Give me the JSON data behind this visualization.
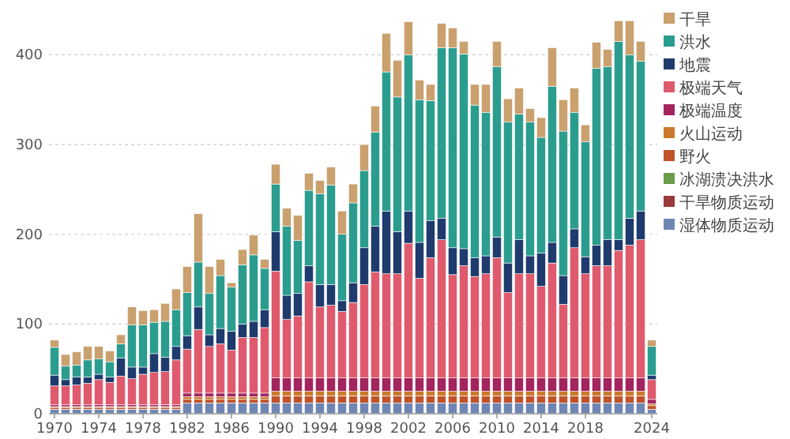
{
  "chart_data": {
    "type": "bar",
    "stacked": true,
    "categories": [
      "1970",
      null,
      null,
      null,
      "1974",
      null,
      null,
      null,
      "1978",
      null,
      null,
      null,
      "1982",
      null,
      null,
      null,
      "1986",
      null,
      null,
      null,
      "1990",
      null,
      null,
      null,
      "1994",
      null,
      null,
      null,
      "1998",
      null,
      null,
      null,
      "2002",
      null,
      null,
      null,
      "2006",
      null,
      null,
      null,
      "2010",
      null,
      null,
      null,
      "2014",
      null,
      null,
      null,
      "2018",
      null,
      null,
      null,
      null,
      null,
      "2024"
    ],
    "series": [
      {
        "name": "湿体物质运动",
        "color": "#6f86b5",
        "values": [
          5,
          5,
          5,
          5,
          5,
          5,
          5,
          5,
          5,
          5,
          5,
          5,
          12,
          12,
          12,
          12,
          12,
          12,
          12,
          12,
          12,
          12,
          12,
          12,
          12,
          12,
          12,
          12,
          12,
          12,
          12,
          12,
          12,
          12,
          12,
          12,
          12,
          12,
          12,
          12,
          12,
          12,
          12,
          12,
          12,
          12,
          12,
          12,
          12,
          12,
          12,
          12,
          12,
          12,
          5
        ]
      },
      {
        "name": "干旱物质运动",
        "color": "#9b3a3a",
        "values": [
          0,
          0,
          0,
          0,
          0,
          0,
          0,
          0,
          0,
          0,
          0,
          0,
          0,
          0,
          0,
          0,
          0,
          0,
          0,
          0,
          0,
          0,
          0,
          0,
          0,
          0,
          0,
          0,
          0,
          0,
          0,
          0,
          0,
          0,
          0,
          0,
          0,
          0,
          0,
          0,
          0,
          0,
          0,
          0,
          0,
          0,
          0,
          0,
          0,
          0,
          0,
          0,
          0,
          0,
          0
        ]
      },
      {
        "name": "冰湖溃决洪水",
        "color": "#6a9a4a",
        "values": [
          0,
          0,
          0,
          0,
          0,
          0,
          0,
          0,
          0,
          0,
          0,
          0,
          0,
          0,
          0,
          0,
          0,
          0,
          0,
          0,
          0,
          0,
          0,
          0,
          0,
          0,
          0,
          0,
          0,
          0,
          0,
          0,
          0,
          0,
          0,
          0,
          0,
          0,
          0,
          0,
          0,
          0,
          0,
          0,
          0,
          0,
          0,
          0,
          0,
          0,
          0,
          0,
          0,
          0,
          0
        ]
      },
      {
        "name": "野火",
        "color": "#c0522a",
        "values": [
          2,
          2,
          2,
          2,
          2,
          2,
          2,
          2,
          2,
          2,
          2,
          2,
          4,
          4,
          4,
          4,
          4,
          4,
          4,
          4,
          8,
          8,
          8,
          8,
          8,
          8,
          8,
          8,
          8,
          8,
          8,
          8,
          8,
          8,
          8,
          8,
          8,
          8,
          8,
          8,
          8,
          8,
          8,
          8,
          8,
          8,
          8,
          8,
          8,
          8,
          8,
          8,
          8,
          8,
          4
        ]
      },
      {
        "name": "火山运动",
        "color": "#c97a2a",
        "values": [
          1,
          1,
          1,
          1,
          1,
          1,
          1,
          1,
          1,
          1,
          1,
          1,
          3,
          3,
          3,
          3,
          3,
          3,
          3,
          3,
          5,
          5,
          5,
          5,
          5,
          5,
          5,
          5,
          5,
          5,
          5,
          5,
          5,
          5,
          5,
          5,
          5,
          5,
          5,
          5,
          5,
          5,
          5,
          5,
          5,
          5,
          5,
          5,
          5,
          5,
          5,
          5,
          5,
          5,
          2
        ]
      },
      {
        "name": "极端温度",
        "color": "#a3245f",
        "values": [
          2,
          2,
          2,
          2,
          2,
          2,
          2,
          2,
          2,
          2,
          2,
          2,
          4,
          4,
          4,
          4,
          4,
          4,
          4,
          4,
          15,
          15,
          15,
          15,
          15,
          15,
          15,
          15,
          15,
          15,
          15,
          15,
          15,
          15,
          15,
          15,
          15,
          15,
          15,
          15,
          15,
          15,
          15,
          15,
          15,
          15,
          15,
          15,
          15,
          15,
          15,
          15,
          15,
          15,
          5
        ]
      },
      {
        "name": "极端天气",
        "color": "#e05a6d",
        "values": [
          21,
          21,
          22,
          24,
          28,
          25,
          32,
          29,
          34,
          36,
          37,
          50,
          49,
          71,
          52,
          55,
          48,
          62,
          62,
          73,
          119,
          65,
          69,
          107,
          79,
          81,
          74,
          84,
          104,
          118,
          116,
          116,
          150,
          111,
          134,
          154,
          115,
          125,
          113,
          116,
          134,
          95,
          116,
          116,
          102,
          128,
          82,
          145,
          116,
          125,
          125,
          142,
          148,
          154,
          22
        ]
      },
      {
        "name": "地震",
        "color": "#1f3b6e",
        "values": [
          12,
          7,
          9,
          7,
          6,
          6,
          20,
          13,
          8,
          21,
          16,
          15,
          15,
          25,
          13,
          17,
          21,
          15,
          18,
          20,
          44,
          27,
          25,
          18,
          25,
          23,
          12,
          22,
          41,
          51,
          70,
          47,
          36,
          40,
          41,
          24,
          30,
          19,
          21,
          20,
          23,
          33,
          38,
          20,
          37,
          23,
          32,
          21,
          19,
          23,
          29,
          12,
          30,
          32,
          5
        ]
      },
      {
        "name": "洪水",
        "color": "#2a9d8f",
        "values": [
          31,
          15,
          13,
          19,
          17,
          17,
          16,
          47,
          47,
          35,
          40,
          41,
          48,
          50,
          46,
          59,
          49,
          66,
          74,
          46,
          53,
          77,
          59,
          84,
          101,
          111,
          74,
          89,
          86,
          105,
          155,
          150,
          174,
          159,
          134,
          190,
          223,
          217,
          170,
          160,
          190,
          157,
          140,
          149,
          129,
          174,
          161,
          130,
          128,
          197,
          193,
          221,
          182,
          167,
          32
        ]
      },
      {
        "name": "干旱",
        "color": "#c9a06e",
        "values": [
          8,
          13,
          15,
          15,
          14,
          12,
          10,
          20,
          16,
          14,
          20,
          23,
          29,
          54,
          30,
          18,
          5,
          17,
          22,
          10,
          22,
          20,
          28,
          19,
          15,
          20,
          26,
          21,
          29,
          29,
          43,
          41,
          37,
          22,
          18,
          27,
          22,
          14,
          23,
          31,
          28,
          26,
          29,
          15,
          22,
          43,
          35,
          27,
          19,
          29,
          19,
          23,
          38,
          22,
          7
        ]
      }
    ],
    "ylim": [
      0,
      440
    ],
    "yticks": [
      0,
      100,
      200,
      300,
      400
    ],
    "grid": "y",
    "legend": "top right"
  }
}
